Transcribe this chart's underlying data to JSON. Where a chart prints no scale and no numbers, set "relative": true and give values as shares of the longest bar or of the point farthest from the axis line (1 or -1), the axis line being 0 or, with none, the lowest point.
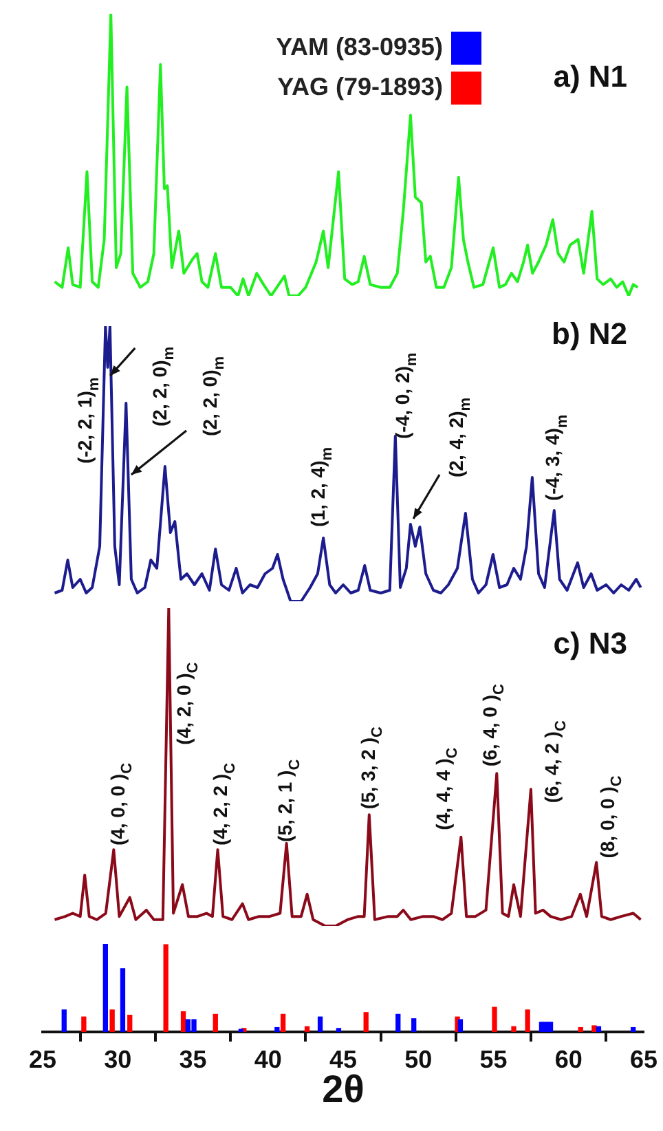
{
  "chart_data": [
    {
      "type": "line",
      "title": "a) N1",
      "relative": true,
      "xlim": [
        25,
        65
      ],
      "tick_labels": false,
      "grid": false,
      "color": "#22ee22",
      "x": [
        25.8,
        26.3,
        26.7,
        27.0,
        27.5,
        27.95,
        28.3,
        28.7,
        29.1,
        29.54,
        29.9,
        30.2,
        30.61,
        31.0,
        31.5,
        32.0,
        32.4,
        32.84,
        33.1,
        33.3,
        33.6,
        34.06,
        34.4,
        34.97,
        35.28,
        35.6,
        36.0,
        36.5,
        36.9,
        37.5,
        38.0,
        38.34,
        38.7,
        39.25,
        39.7,
        40.2,
        41.09,
        41.4,
        42.0,
        42.5,
        43.2,
        43.68,
        44.0,
        44.69,
        45.1,
        45.6,
        46.0,
        46.4,
        46.8,
        47.5,
        48.1,
        48.6,
        49.0,
        49.48,
        49.8,
        50.2,
        50.5,
        50.8,
        51.2,
        51.7,
        52.2,
        52.68,
        53.0,
        53.3,
        53.7,
        54.3,
        54.98,
        55.4,
        55.8,
        56.2,
        56.6,
        57.0,
        57.27,
        57.6,
        58.0,
        58.5,
        58.95,
        59.3,
        59.7,
        60.1,
        60.63,
        61.0,
        61.55,
        61.9,
        62.3,
        62.8,
        63.2,
        63.6,
        64.0,
        64.3,
        64.6
      ],
      "values": [
        0.05,
        0.03,
        0.17,
        0.04,
        0.03,
        0.44,
        0.05,
        0.03,
        0.2,
        1.0,
        0.1,
        0.15,
        0.74,
        0.08,
        0.03,
        0.05,
        0.15,
        0.82,
        0.38,
        0.39,
        0.1,
        0.23,
        0.08,
        0.13,
        0.15,
        0.05,
        0.03,
        0.15,
        0.03,
        0.03,
        0.0,
        0.06,
        0.0,
        0.08,
        0.04,
        0.0,
        0.07,
        0.0,
        0.0,
        0.03,
        0.12,
        0.23,
        0.1,
        0.44,
        0.06,
        0.04,
        0.05,
        0.14,
        0.04,
        0.03,
        0.03,
        0.08,
        0.3,
        0.64,
        0.35,
        0.33,
        0.12,
        0.14,
        0.03,
        0.03,
        0.1,
        0.42,
        0.2,
        0.12,
        0.03,
        0.04,
        0.17,
        0.03,
        0.04,
        0.08,
        0.05,
        0.12,
        0.18,
        0.08,
        0.12,
        0.18,
        0.27,
        0.15,
        0.12,
        0.18,
        0.2,
        0.08,
        0.3,
        0.06,
        0.04,
        0.06,
        0.03,
        0.05,
        0.0,
        0.04,
        0.03
      ]
    },
    {
      "type": "line",
      "title": "b) N2",
      "relative": true,
      "xlim": [
        25,
        65
      ],
      "tick_labels": false,
      "grid": false,
      "color": "#1c1c8e",
      "x": [
        25.8,
        26.3,
        26.67,
        27.0,
        27.5,
        27.9,
        28.3,
        28.8,
        29.18,
        29.33,
        29.48,
        29.8,
        30.1,
        30.55,
        30.9,
        31.3,
        31.8,
        32.2,
        32.6,
        33.14,
        33.5,
        33.8,
        34.2,
        34.6,
        35.1,
        35.6,
        36.1,
        36.5,
        36.9,
        37.4,
        37.88,
        38.3,
        38.8,
        39.3,
        39.8,
        40.3,
        40.63,
        41.0,
        41.5,
        42.2,
        42.8,
        43.3,
        43.68,
        44.1,
        44.5,
        45.0,
        45.5,
        46.0,
        46.43,
        46.8,
        47.5,
        48.1,
        48.47,
        48.8,
        49.2,
        49.48,
        49.8,
        50.1,
        50.5,
        51.0,
        51.5,
        52.0,
        52.6,
        53.14,
        53.6,
        54.0,
        54.5,
        54.97,
        55.4,
        55.9,
        56.35,
        56.8,
        57.2,
        57.58,
        58.0,
        58.4,
        59.04,
        59.4,
        59.9,
        60.6,
        61.0,
        61.5,
        61.9,
        62.5,
        63.0,
        63.5,
        64.0,
        64.5,
        64.8
      ],
      "values": [
        0.03,
        0.04,
        0.15,
        0.05,
        0.08,
        0.03,
        0.05,
        0.2,
        1.0,
        0.85,
        1.0,
        0.2,
        0.06,
        0.72,
        0.08,
        0.03,
        0.05,
        0.15,
        0.12,
        0.49,
        0.25,
        0.29,
        0.08,
        0.1,
        0.06,
        0.1,
        0.04,
        0.19,
        0.06,
        0.04,
        0.12,
        0.03,
        0.06,
        0.05,
        0.1,
        0.12,
        0.17,
        0.08,
        0.0,
        0.0,
        0.05,
        0.1,
        0.23,
        0.06,
        0.03,
        0.06,
        0.03,
        0.04,
        0.13,
        0.04,
        0.03,
        0.04,
        0.6,
        0.05,
        0.12,
        0.28,
        0.2,
        0.27,
        0.1,
        0.04,
        0.03,
        0.06,
        0.12,
        0.32,
        0.08,
        0.03,
        0.06,
        0.17,
        0.05,
        0.06,
        0.12,
        0.08,
        0.2,
        0.45,
        0.1,
        0.05,
        0.33,
        0.08,
        0.04,
        0.14,
        0.05,
        0.1,
        0.04,
        0.06,
        0.03,
        0.06,
        0.04,
        0.08,
        0.05
      ],
      "annotations": [
        {
          "text": "(-2, 2, 1)$_{m}$",
          "x": 29.0,
          "y": 0.5
        },
        {
          "text": "(2, 2, 0)$_{m}$",
          "x": 29.5,
          "y": 0.82
        },
        {
          "text": "(2, 2, 0)$_{m}$",
          "x": 30.9,
          "y": 0.46
        },
        {
          "text": "(1, 2, 4)$_{m}$",
          "x": 43.68,
          "y": 0.23
        },
        {
          "text": "(-4, 0, 2)$_{m}$",
          "x": 48.47,
          "y": 0.6
        },
        {
          "text": "(2, 4, 2)$_{m}$",
          "x": 49.67,
          "y": 0.3
        },
        {
          "text": "(-4, 3, 4)$_{m}$",
          "x": 59.04,
          "y": 0.33
        }
      ]
    },
    {
      "type": "line",
      "title": "c) N3",
      "relative": true,
      "xlim": [
        25,
        65
      ],
      "tick_labels": false,
      "grid": false,
      "color": "#8b0a1a",
      "x": [
        25.8,
        26.5,
        27.0,
        27.5,
        27.8,
        28.1,
        28.6,
        29.2,
        29.73,
        30.1,
        30.8,
        31.2,
        31.9,
        32.4,
        33.0,
        33.39,
        33.7,
        34.3,
        34.7,
        35.3,
        35.9,
        36.3,
        36.65,
        37.0,
        37.6,
        38.3,
        38.7,
        39.4,
        40.1,
        40.8,
        41.23,
        41.6,
        42.2,
        42.6,
        43.0,
        43.8,
        44.5,
        45.3,
        46.0,
        46.4,
        46.73,
        47.1,
        48.0,
        48.6,
        49.0,
        49.5,
        50.3,
        51.0,
        51.6,
        52.2,
        52.84,
        53.2,
        53.8,
        54.5,
        55.22,
        55.6,
        56.0,
        56.35,
        56.8,
        57.49,
        57.8,
        58.3,
        58.8,
        59.5,
        60.2,
        60.78,
        61.2,
        61.85,
        62.2,
        62.8,
        63.5,
        64.3,
        64.8
      ],
      "values": [
        0.02,
        0.03,
        0.04,
        0.03,
        0.16,
        0.03,
        0.02,
        0.04,
        0.24,
        0.03,
        0.09,
        0.02,
        0.05,
        0.02,
        0.02,
        1.0,
        0.04,
        0.13,
        0.03,
        0.03,
        0.04,
        0.03,
        0.24,
        0.03,
        0.02,
        0.07,
        0.02,
        0.03,
        0.03,
        0.04,
        0.26,
        0.03,
        0.03,
        0.1,
        0.02,
        0.0,
        0.0,
        0.02,
        0.03,
        0.03,
        0.35,
        0.02,
        0.03,
        0.03,
        0.05,
        0.02,
        0.03,
        0.03,
        0.02,
        0.04,
        0.28,
        0.03,
        0.03,
        0.05,
        0.48,
        0.04,
        0.03,
        0.13,
        0.03,
        0.43,
        0.04,
        0.05,
        0.03,
        0.02,
        0.03,
        0.1,
        0.03,
        0.2,
        0.03,
        0.02,
        0.03,
        0.04,
        0.02
      ],
      "annotations": [
        {
          "text": "(4, 0, 0 )$_{C}$",
          "x": 29.73,
          "y": 0.24
        },
        {
          "text": "(4, 2, 0 )$_{C}$",
          "x": 33.39,
          "y": 0.57
        },
        {
          "text": "(4, 2, 2 )$_{C}$",
          "x": 36.65,
          "y": 0.24
        },
        {
          "text": "(5, 2, 1 )$_{C}$",
          "x": 41.23,
          "y": 0.26
        },
        {
          "text": "(5, 3, 2 )$_{C}$",
          "x": 46.73,
          "y": 0.35
        },
        {
          "text": "(4, 4, 4 )$_{C}$",
          "x": 52.84,
          "y": 0.28
        },
        {
          "text": "(6, 4, 0 )$_{C}$",
          "x": 55.22,
          "y": 0.48
        },
        {
          "text": "(6, 4, 2 )$_{C}$",
          "x": 57.49,
          "y": 0.43
        },
        {
          "text": "(8, 0, 0 )$_{C}$",
          "x": 61.85,
          "y": 0.2
        }
      ]
    },
    {
      "type": "bar",
      "relative": true,
      "xlabel": "2θ",
      "xlim": [
        25,
        65
      ],
      "tick_labels": "x",
      "grid": false,
      "legend": "top",
      "xticks": [
        25,
        30,
        35,
        40,
        45,
        50,
        55,
        60,
        65
      ],
      "series": [
        {
          "name": "YAM (83-0935)",
          "color": "#0000ff",
          "x": [
            26.43,
            29.18,
            30.33,
            34.67,
            35.07,
            38.2,
            40.6,
            43.47,
            44.7,
            48.65,
            49.7,
            52.8,
            58.2,
            58.5,
            58.8,
            62.0,
            64.3
          ],
          "values": [
            0.25,
            1.0,
            0.72,
            0.14,
            0.14,
            0.03,
            0.05,
            0.17,
            0.04,
            0.2,
            0.15,
            0.14,
            0.11,
            0.11,
            0.11,
            0.06,
            0.05
          ]
        },
        {
          "name": "YAG (79-1893)",
          "color": "#ff0000",
          "x": [
            27.74,
            29.63,
            30.8,
            33.2,
            34.36,
            36.5,
            38.4,
            41.0,
            42.6,
            46.52,
            52.6,
            55.07,
            56.35,
            57.27,
            60.8,
            61.7
          ],
          "values": [
            0.17,
            0.25,
            0.19,
            0.99,
            0.23,
            0.2,
            0.04,
            0.2,
            0.06,
            0.22,
            0.17,
            0.28,
            0.06,
            0.25,
            0.05,
            0.07
          ]
        }
      ]
    }
  ]
}
